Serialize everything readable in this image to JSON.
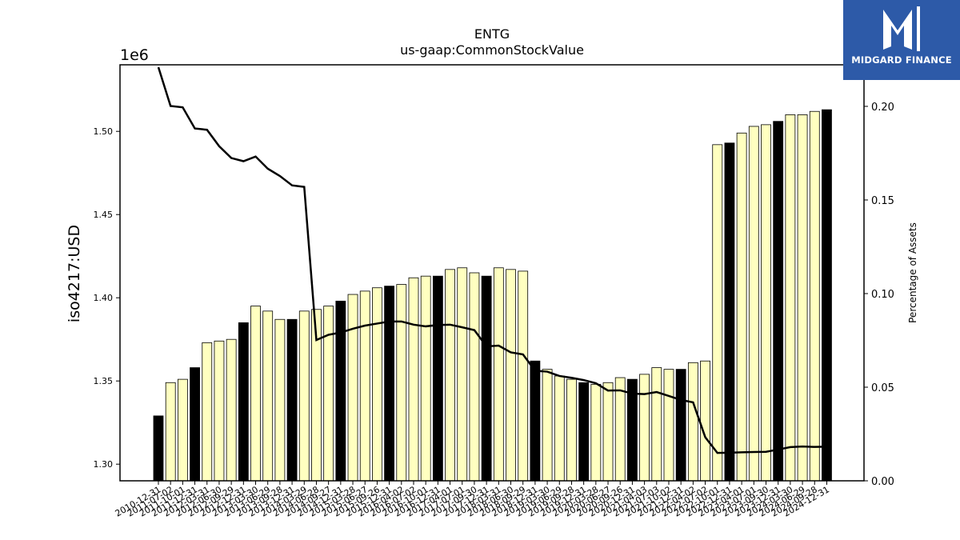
{
  "chart_data": {
    "type": "bar",
    "title": "ENTG",
    "subtitle": "us-gaap:CommonStockValue",
    "ylabel": "iso4217:USD",
    "y_offset_text": "1e6",
    "y2label": "Percentage of Assets",
    "ylim": [
      1290000,
      1540000
    ],
    "y2lim": [
      0.0,
      0.2222
    ],
    "yticks": [
      "1.30",
      "1.35",
      "1.40",
      "1.45",
      "1.50"
    ],
    "y2ticks": [
      "0.00",
      "0.05",
      "0.10",
      "0.15",
      "0.20"
    ],
    "categories": [
      "2010-12-31",
      "2011-07-02",
      "2011-10-01",
      "2011-12-31",
      "2012-03-31",
      "2012-06-30",
      "2012-09-29",
      "2012-12-31",
      "2013-03-30",
      "2013-06-29",
      "2013-09-28",
      "2013-12-31",
      "2014-03-29",
      "2014-06-28",
      "2014-09-27",
      "2014-12-31",
      "2015-03-28",
      "2015-06-27",
      "2015-09-26",
      "2015-12-31",
      "2016-04-02",
      "2016-07-02",
      "2016-10-01",
      "2016-12-31",
      "2017-04-01",
      "2017-07-01",
      "2017-09-30",
      "2017-12-31",
      "2018-03-31",
      "2018-06-30",
      "2018-09-29",
      "2018-12-31",
      "2019-03-30",
      "2019-06-29",
      "2019-09-28",
      "2019-12-31",
      "2020-03-28",
      "2020-06-27",
      "2020-09-26",
      "2020-12-31",
      "2021-04-03",
      "2021-07-03",
      "2021-10-02",
      "2021-12-31",
      "2022-04-02",
      "2022-07-02",
      "2022-10-01",
      "2022-12-31",
      "2023-04-01",
      "2023-07-01",
      "2023-09-30",
      "2023-12-31",
      "2024-03-30",
      "2024-06-29",
      "2024-09-28",
      "2024-12-31"
    ],
    "tick_labels_shown": [
      "2010-12-31",
      "2011-07-02",
      "2011-10-01",
      "2011-12-31",
      "2012-03-31",
      "2012-06-30",
      "2012-09-29",
      "2012-12-31",
      "2013-03-30",
      "2013-06-29",
      "2013-09-28",
      "2013-12-31",
      "2014-03-29",
      "2014-06-28",
      "2014-09-27",
      "2014-12-31",
      "2015-03-28",
      "2015-06-27",
      "2015-09-26",
      "2015-12-31",
      "2016-04-02",
      "2016-07-02",
      "2016-10-01",
      "2016-12-31",
      "2017-04-01",
      "2017-07-01",
      "2017-09-30",
      "2017-12-31",
      "2018-03-31",
      "2018-06-30",
      "2018-09-29",
      "2018-12-31",
      "2019-03-30",
      "2019-06-29",
      "2019-09-28",
      "2019-12-31",
      "2020-03-28",
      "2020-06-27",
      "2020-09-26",
      "2020-12-31",
      "2021-04-03",
      "2021-07-03",
      "2021-10-02",
      "2021-12-31",
      "2022-04-02",
      "2022-07-02",
      "2022-10-01",
      "2022-12-31",
      "2023-04-01",
      "2023-07-01",
      "2023-09-30",
      "2023-12-31",
      "2024-03-30",
      "2024-06-29",
      "2024-09-28",
      "2024-12-31"
    ],
    "values": [
      1329000,
      1349000,
      1351000,
      1358000,
      1373000,
      1374000,
      1375000,
      1385000,
      1395000,
      1392000,
      1387000,
      1387000,
      1392000,
      1393000,
      1395000,
      1398000,
      1402000,
      1404000,
      1406000,
      1407000,
      1408000,
      1412000,
      1413000,
      1413000,
      1417000,
      1418000,
      1415000,
      1413000,
      1418000,
      1417000,
      1416000,
      1362000,
      1357000,
      1353000,
      1351000,
      1349000,
      1348000,
      1349000,
      1352000,
      1351000,
      1354000,
      1358000,
      1357000,
      1357000,
      1361000,
      1362000,
      1492000,
      1493000,
      1499000,
      1503000,
      1504000,
      1506000,
      1510000,
      1510000,
      1512000,
      1513000
    ],
    "annual": [
      true,
      false,
      false,
      true,
      false,
      false,
      false,
      true,
      false,
      false,
      false,
      true,
      false,
      false,
      false,
      true,
      false,
      false,
      false,
      true,
      false,
      false,
      false,
      true,
      false,
      false,
      false,
      true,
      false,
      false,
      false,
      true,
      false,
      false,
      false,
      true,
      false,
      false,
      false,
      true,
      false,
      false,
      false,
      true,
      false,
      false,
      false,
      true,
      false,
      false,
      false,
      true,
      false,
      false,
      false,
      true
    ],
    "pct_of_assets": [
      0.2209,
      0.2002,
      0.1995,
      0.1882,
      0.1875,
      0.1787,
      0.1724,
      0.1707,
      0.1732,
      0.1667,
      0.1628,
      0.1578,
      0.157,
      0.0752,
      0.078,
      0.0792,
      0.0812,
      0.0829,
      0.084,
      0.0851,
      0.0851,
      0.0834,
      0.0825,
      0.0832,
      0.0834,
      0.082,
      0.0805,
      0.0718,
      0.0722,
      0.0686,
      0.0675,
      0.0588,
      0.0583,
      0.056,
      0.055,
      0.0538,
      0.0521,
      0.0482,
      0.0483,
      0.0466,
      0.0463,
      0.0474,
      0.0453,
      0.0432,
      0.0419,
      0.0233,
      0.0149,
      0.015,
      0.0152,
      0.0154,
      0.0155,
      0.0167,
      0.018,
      0.0183,
      0.0181,
      0.0182
    ],
    "colors": {
      "annual_bar": "#000000",
      "quarter_bar": "#ffffc0",
      "bar_edge": "#000000",
      "line": "#000000"
    },
    "grid": false,
    "legend": "none"
  },
  "logo": {
    "text": "MIDGARD FINANCE",
    "bg": "#2d5aa8",
    "icon": "midgard-logo-icon"
  }
}
